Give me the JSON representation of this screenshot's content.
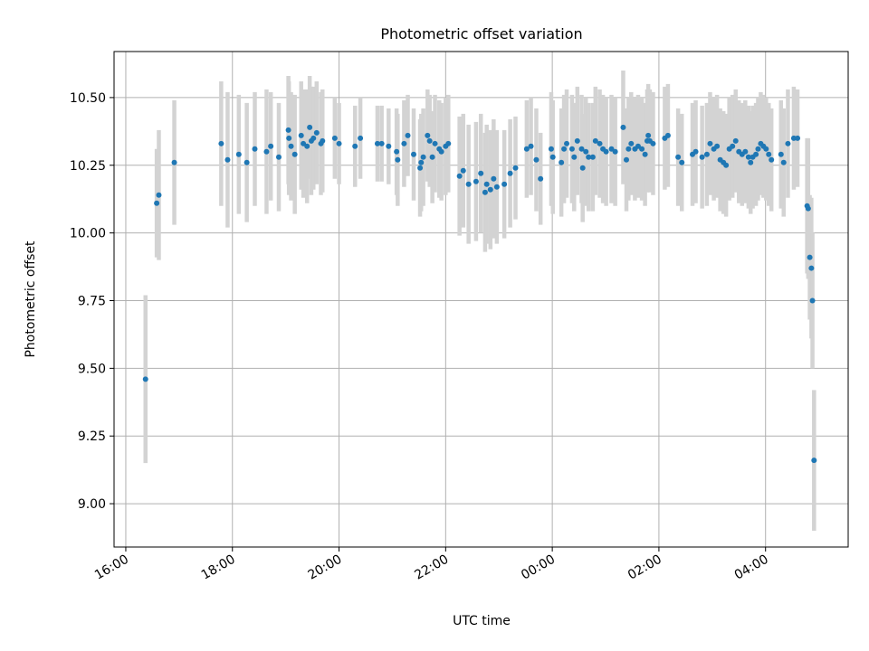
{
  "chart_data": {
    "type": "scatter",
    "title": "Photometric offset variation",
    "xlabel": "UTC time",
    "ylabel": "Photometric offset",
    "x_ticks": [
      "16:00",
      "18:00",
      "20:00",
      "22:00",
      "00:00",
      "02:00",
      "04:00"
    ],
    "y_ticks": [
      "9.00",
      "9.25",
      "9.50",
      "9.75",
      "10.00",
      "10.25",
      "10.50"
    ],
    "y_tick_values": [
      9.0,
      9.25,
      9.5,
      9.75,
      10.0,
      10.25,
      10.5
    ],
    "x_tick_hours": [
      16,
      18,
      20,
      22,
      24,
      26,
      28
    ],
    "xlim_hours": [
      15.78,
      29.55
    ],
    "ylim": [
      8.84,
      10.67
    ],
    "grid": true,
    "colors": {
      "point": "#1f77b4",
      "errorbar": "#d3d3d3",
      "grid": "#b0b0b0"
    },
    "series": [
      {
        "x_hours": [
          16.37,
          16.58,
          16.62,
          16.91,
          17.79,
          17.91,
          18.12,
          18.27,
          18.42,
          18.64,
          18.72,
          18.87,
          19.05,
          19.06,
          19.1,
          19.17,
          19.29,
          19.33,
          19.4,
          19.45,
          19.48,
          19.52,
          19.58,
          19.66,
          19.69,
          19.92,
          20.0,
          20.3,
          20.4,
          20.72,
          20.8,
          20.93,
          21.08,
          21.1,
          21.22,
          21.29,
          21.4,
          21.52,
          21.54,
          21.58,
          21.66,
          21.7,
          21.75,
          21.8,
          21.88,
          21.92,
          22.0,
          22.05,
          22.26,
          22.33,
          22.43,
          22.57,
          22.66,
          22.74,
          22.77,
          22.84,
          22.9,
          22.96,
          23.1,
          23.21,
          23.31,
          23.52,
          23.6,
          23.7,
          23.78,
          23.98,
          24.01,
          24.17,
          24.22,
          24.27,
          24.37,
          24.41,
          24.47,
          24.55,
          24.57,
          24.63,
          24.68,
          24.76,
          24.81,
          24.89,
          24.95,
          25.01,
          25.11,
          25.18,
          25.33,
          25.39,
          25.43,
          25.48,
          25.55,
          25.61,
          25.68,
          25.74,
          25.78,
          25.8,
          25.83,
          25.89,
          26.11,
          26.17,
          26.36,
          26.43,
          26.63,
          26.69,
          26.81,
          26.9,
          26.96,
          27.03,
          27.09,
          27.15,
          27.21,
          27.26,
          27.32,
          27.38,
          27.44,
          27.5,
          27.56,
          27.62,
          27.68,
          27.72,
          27.76,
          27.82,
          27.86,
          27.91,
          27.96,
          28.01,
          28.06,
          28.11,
          28.29,
          28.34,
          28.42,
          28.53,
          28.6,
          28.78,
          28.8,
          28.83,
          28.86,
          28.88,
          28.91
        ],
        "y": [
          9.46,
          10.11,
          10.14,
          10.26,
          10.33,
          10.27,
          10.29,
          10.26,
          10.31,
          10.3,
          10.32,
          10.28,
          10.38,
          10.35,
          10.32,
          10.29,
          10.36,
          10.33,
          10.32,
          10.39,
          10.34,
          10.35,
          10.37,
          10.33,
          10.34,
          10.35,
          10.33,
          10.32,
          10.35,
          10.33,
          10.33,
          10.32,
          10.3,
          10.27,
          10.33,
          10.36,
          10.29,
          10.24,
          10.26,
          10.28,
          10.36,
          10.34,
          10.28,
          10.33,
          10.31,
          10.3,
          10.32,
          10.33,
          10.21,
          10.23,
          10.18,
          10.19,
          10.22,
          10.15,
          10.18,
          10.16,
          10.2,
          10.17,
          10.18,
          10.22,
          10.24,
          10.31,
          10.32,
          10.27,
          10.2,
          10.31,
          10.28,
          10.26,
          10.31,
          10.33,
          10.31,
          10.28,
          10.34,
          10.31,
          10.24,
          10.3,
          10.28,
          10.28,
          10.34,
          10.33,
          10.31,
          10.3,
          10.31,
          10.3,
          10.39,
          10.27,
          10.31,
          10.33,
          10.31,
          10.32,
          10.31,
          10.29,
          10.34,
          10.36,
          10.34,
          10.33,
          10.35,
          10.36,
          10.28,
          10.26,
          10.29,
          10.3,
          10.28,
          10.29,
          10.33,
          10.31,
          10.32,
          10.27,
          10.26,
          10.25,
          10.31,
          10.32,
          10.34,
          10.3,
          10.29,
          10.3,
          10.28,
          10.26,
          10.28,
          10.29,
          10.31,
          10.33,
          10.32,
          10.31,
          10.29,
          10.27,
          10.29,
          10.26,
          10.33,
          10.35,
          10.35,
          10.1,
          10.09,
          9.91,
          9.87,
          9.75,
          9.16
        ],
        "y_err": [
          0.31,
          0.2,
          0.24,
          0.23,
          0.23,
          0.25,
          0.22,
          0.22,
          0.21,
          0.23,
          0.2,
          0.2,
          0.2,
          0.21,
          0.2,
          0.22,
          0.2,
          0.2,
          0.21,
          0.19,
          0.2,
          0.19,
          0.19,
          0.19,
          0.19,
          0.15,
          0.15,
          0.15,
          0.15,
          0.14,
          0.14,
          0.14,
          0.16,
          0.17,
          0.16,
          0.15,
          0.17,
          0.18,
          0.18,
          0.18,
          0.17,
          0.17,
          0.17,
          0.18,
          0.18,
          0.18,
          0.18,
          0.18,
          0.22,
          0.21,
          0.22,
          0.22,
          0.22,
          0.22,
          0.22,
          0.22,
          0.22,
          0.21,
          0.2,
          0.2,
          0.19,
          0.18,
          0.18,
          0.19,
          0.17,
          0.21,
          0.21,
          0.2,
          0.2,
          0.2,
          0.2,
          0.2,
          0.2,
          0.2,
          0.2,
          0.2,
          0.2,
          0.2,
          0.2,
          0.2,
          0.2,
          0.2,
          0.2,
          0.2,
          0.21,
          0.19,
          0.19,
          0.19,
          0.19,
          0.19,
          0.19,
          0.19,
          0.19,
          0.19,
          0.19,
          0.19,
          0.19,
          0.19,
          0.18,
          0.18,
          0.19,
          0.19,
          0.19,
          0.19,
          0.19,
          0.19,
          0.19,
          0.19,
          0.19,
          0.19,
          0.19,
          0.19,
          0.19,
          0.19,
          0.19,
          0.19,
          0.19,
          0.19,
          0.19,
          0.19,
          0.19,
          0.19,
          0.19,
          0.19,
          0.19,
          0.19,
          0.2,
          0.2,
          0.2,
          0.19,
          0.18,
          0.25,
          0.26,
          0.23,
          0.26,
          0.25,
          0.26
        ]
      }
    ]
  }
}
